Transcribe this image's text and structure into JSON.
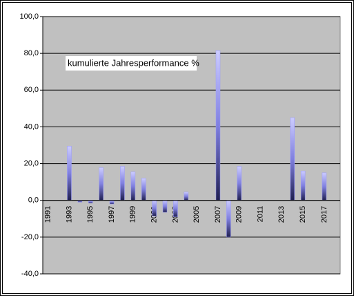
{
  "chart_data": {
    "type": "bar",
    "annotation": "kumulierte Jahresperformance %",
    "categories": [
      "1991",
      null,
      "1993",
      null,
      "1995",
      null,
      "1997",
      null,
      "1999",
      null,
      "2001",
      null,
      "2003",
      null,
      "2005",
      null,
      "2007",
      null,
      "2009",
      null,
      "2011",
      null,
      "2013",
      null,
      "2015",
      null,
      "2017",
      null
    ],
    "values": [
      null,
      null,
      29.5,
      -1,
      -1.5,
      17.8,
      -2,
      18.5,
      15.5,
      12,
      -8.5,
      -6.5,
      -9,
      4.5,
      null,
      null,
      81.5,
      -20,
      18.5,
      null,
      null,
      null,
      null,
      45,
      16,
      null,
      15,
      null
    ],
    "color": "#9999ff",
    "ylim": [
      -40,
      100
    ],
    "yticks": [
      {
        "value": -40,
        "label": "-40,0"
      },
      {
        "value": -20,
        "label": "-20,0"
      },
      {
        "value": 0,
        "label": "0,0"
      },
      {
        "value": 20,
        "label": "20,0"
      },
      {
        "value": 40,
        "label": "40,0"
      },
      {
        "value": 60,
        "label": "60,0"
      },
      {
        "value": 80,
        "label": "80,0"
      },
      {
        "value": 100,
        "label": "100,0"
      }
    ],
    "grid": true
  }
}
